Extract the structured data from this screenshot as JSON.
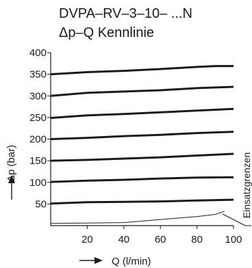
{
  "chart_data": {
    "type": "line",
    "title": "DVPA–RV–3–10– ...N",
    "subtitle": "Δp–Q Kennlinie",
    "xlabel": "Q (l/min)",
    "ylabel": "Δp (bar)",
    "xlim": [
      0,
      100
    ],
    "ylim": [
      0,
      400
    ],
    "x_ticks": [
      20,
      40,
      60,
      80,
      100
    ],
    "y_ticks": [
      50,
      100,
      150,
      200,
      250,
      300,
      350,
      400
    ],
    "grid": false,
    "legend": "none",
    "annotation": "Einsatzgrenzen",
    "series": [
      {
        "style": "thick",
        "x": [
          0,
          20,
          40,
          60,
          80,
          90,
          100
        ],
        "y": [
          350,
          355,
          358,
          362,
          367,
          369,
          369
        ]
      },
      {
        "style": "thick",
        "x": [
          0,
          20,
          40,
          60,
          80,
          100
        ],
        "y": [
          300,
          307,
          310,
          313,
          318,
          321
        ]
      },
      {
        "style": "thick",
        "x": [
          0,
          20,
          40,
          60,
          80,
          100
        ],
        "y": [
          249,
          255,
          258,
          262,
          266,
          270
        ]
      },
      {
        "style": "thick",
        "x": [
          0,
          20,
          40,
          60,
          80,
          100
        ],
        "y": [
          200,
          203,
          207,
          210,
          214,
          217
        ]
      },
      {
        "style": "thick",
        "x": [
          0,
          20,
          40,
          60,
          80,
          100
        ],
        "y": [
          150,
          152,
          155,
          158,
          162,
          166
        ]
      },
      {
        "style": "thick",
        "x": [
          0,
          20,
          40,
          60,
          80,
          100
        ],
        "y": [
          101,
          104,
          106,
          109,
          111,
          112
        ]
      },
      {
        "style": "thick",
        "x": [
          0,
          20,
          40,
          60,
          80,
          100
        ],
        "y": [
          51,
          54,
          55,
          56,
          58,
          60
        ]
      },
      {
        "style": "thin",
        "x": [
          0,
          40,
          60,
          80,
          90,
          95
        ],
        "y": [
          5,
          7,
          14,
          21,
          26,
          33
        ]
      }
    ],
    "colors": {
      "line": "#1a1a1a"
    }
  }
}
